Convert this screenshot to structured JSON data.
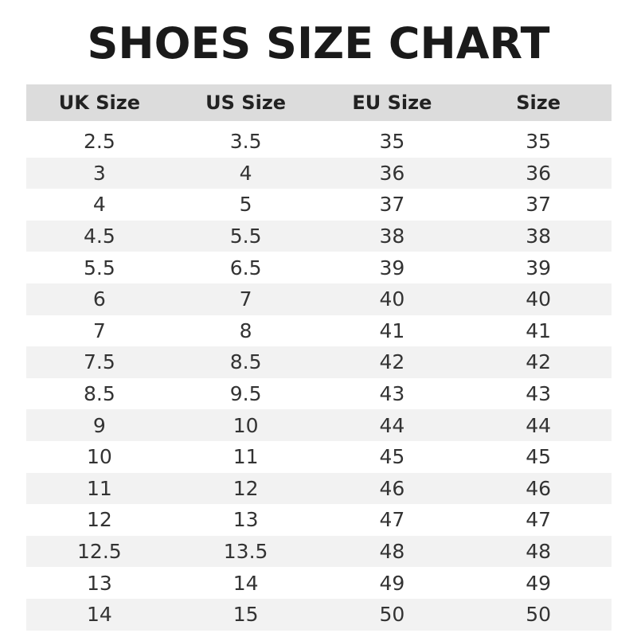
{
  "title": "SHOES SIZE CHART",
  "headers": [
    "UK Size",
    "US Size",
    "EU Size",
    "Size"
  ],
  "rows": [
    [
      "2.5",
      "3.5",
      "35",
      "35"
    ],
    [
      "3",
      "4",
      "36",
      "36"
    ],
    [
      "4",
      "5",
      "37",
      "37"
    ],
    [
      "4.5",
      "5.5",
      "38",
      "38"
    ],
    [
      "5.5",
      "6.5",
      "39",
      "39"
    ],
    [
      "6",
      "7",
      "40",
      "40"
    ],
    [
      "7",
      "8",
      "41",
      "41"
    ],
    [
      "7.5",
      "8.5",
      "42",
      "42"
    ],
    [
      "8.5",
      "9.5",
      "43",
      "43"
    ],
    [
      "9",
      "10",
      "44",
      "44"
    ],
    [
      "10",
      "11",
      "45",
      "45"
    ],
    [
      "11",
      "12",
      "46",
      "46"
    ],
    [
      "12",
      "13",
      "47",
      "47"
    ],
    [
      "12.5",
      "13.5",
      "48",
      "48"
    ],
    [
      "13",
      "14",
      "49",
      "49"
    ],
    [
      "14",
      "15",
      "50",
      "50"
    ]
  ]
}
